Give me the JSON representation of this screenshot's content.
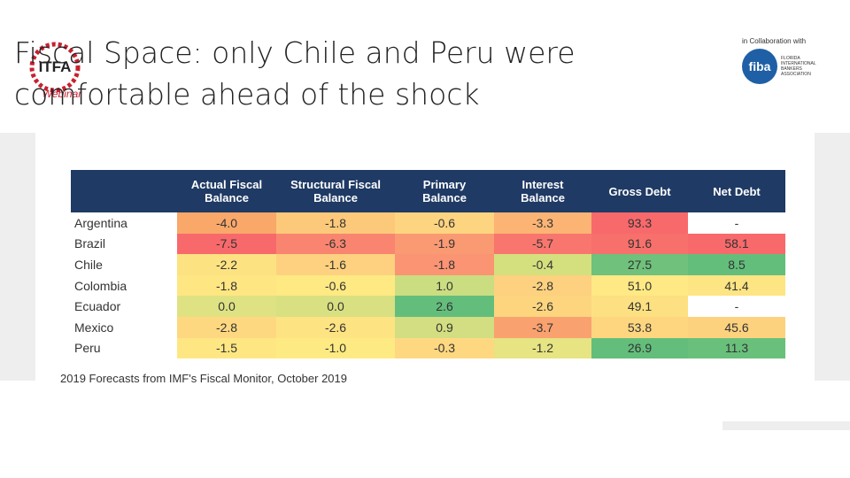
{
  "slide": {
    "title": "Fiscal Space: only Chile and Peru were comfortable ahead of the shock",
    "logo_left": {
      "name": "ITFA",
      "tag": "Webinar"
    },
    "logo_right": {
      "caption": "in Collaboration with",
      "name": "fiba",
      "org": "FLORIDA INTERNATIONAL BANKERS ASSOCIATION"
    }
  },
  "table": {
    "headers": [
      "",
      "Actual Fiscal Balance",
      "Structural Fiscal Balance",
      "Primary Balance",
      "Interest Balance",
      "Gross Debt",
      "Net Debt"
    ],
    "rows": [
      [
        "Argentina",
        "-4.0",
        "-1.8",
        "-0.6",
        "-3.3",
        "93.3",
        "-"
      ],
      [
        "Brazil",
        "-7.5",
        "-6.3",
        "-1.9",
        "-5.7",
        "91.6",
        "58.1"
      ],
      [
        "Chile",
        "-2.2",
        "-1.6",
        "-1.8",
        "-0.4",
        "27.5",
        "8.5"
      ],
      [
        "Colombia",
        "-1.8",
        "-0.6",
        "1.0",
        "-2.8",
        "51.0",
        "41.4"
      ],
      [
        "Ecuador",
        "0.0",
        "0.0",
        "2.6",
        "-2.6",
        "49.1",
        "-"
      ],
      [
        "Mexico",
        "-2.8",
        "-2.6",
        "0.9",
        "-3.7",
        "53.8",
        "45.6"
      ],
      [
        "Peru",
        "-1.5",
        "-1.0",
        "-0.3",
        "-1.2",
        "26.9",
        "11.3"
      ]
    ],
    "cell_colors": [
      [
        "#f9a86a",
        "#fcc97a",
        "#fdd47f",
        "#fbb474",
        "#f8696b",
        "#ffffff"
      ],
      [
        "#f8696b",
        "#f98570",
        "#fa9a73",
        "#f8766d",
        "#f8706c",
        "#f8696b"
      ],
      [
        "#fde282",
        "#fdd17f",
        "#fa9473",
        "#d4e07e",
        "#6fc17b",
        "#63be7b"
      ],
      [
        "#fee683",
        "#fee983",
        "#cbdd81",
        "#fdd17f",
        "#ffe984",
        "#fee583"
      ],
      [
        "#dfe283",
        "#d9e082",
        "#63be7b",
        "#fdd57f",
        "#fde082",
        "#ffffff"
      ],
      [
        "#fed880",
        "#fee383",
        "#d2de81",
        "#f9a16f",
        "#fed680",
        "#fdd27f"
      ],
      [
        "#fee783",
        "#feea83",
        "#fed881",
        "#e6e483",
        "#63be7b",
        "#69c07b"
      ]
    ],
    "caption": "2019 Forecasts from IMF's Fiscal Monitor, October 2019"
  }
}
